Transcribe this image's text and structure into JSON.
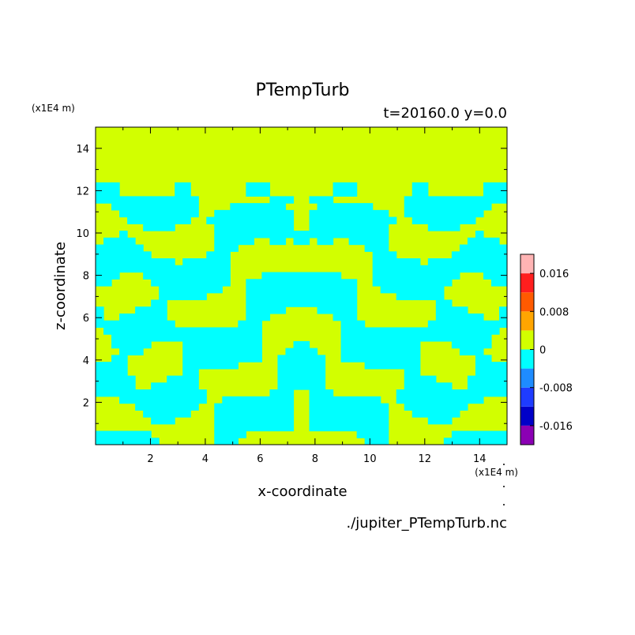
{
  "chart_data": {
    "type": "heatmap",
    "title": "PTempTurb",
    "subtitle": "t=20160.0 y=0.0",
    "source_file": "./jupiter_PTempTurb.nc",
    "xlabel": "x-coordinate",
    "ylabel": "z-coordinate",
    "x_unit_label": "(x1E4 m)",
    "y_unit_label": "(x1E4 m)",
    "xlim": [
      0,
      15
    ],
    "ylim": [
      0,
      15
    ],
    "x_ticks": [
      2,
      4,
      6,
      8,
      10,
      12,
      14
    ],
    "y_ticks": [
      2,
      4,
      6,
      8,
      10,
      12,
      14
    ],
    "x_tick_labels": [
      "2",
      "4",
      "6",
      "8",
      "10",
      "12",
      "14"
    ],
    "y_tick_labels": [
      "2",
      "4",
      "6",
      "8",
      "10",
      "12",
      "14"
    ],
    "field_description": "Symmetric turbulent pattern about x=7.5; values mostly between -0.004 and +0.004 (cyan/yellow-green), uniform near 0 above z≈12.5",
    "colorbar": {
      "levels": [
        -0.02,
        -0.016,
        -0.012,
        -0.008,
        -0.004,
        0,
        0.004,
        0.008,
        0.012,
        0.016,
        0.02
      ],
      "colors": [
        "#8b00b4",
        "#0000c8",
        "#1e3cff",
        "#1e8cff",
        "#00ffff",
        "#d2ff00",
        "#ffa500",
        "#ff5a00",
        "#ff1e1e",
        "#ffb4b4"
      ],
      "tick_values": [
        0.016,
        0.008,
        0,
        -0.008,
        -0.016
      ],
      "tick_labels": [
        "0.016",
        "0.008",
        "0",
        "-0.008",
        "-0.016"
      ]
    },
    "grid": false,
    "legend": "right colorbar"
  }
}
